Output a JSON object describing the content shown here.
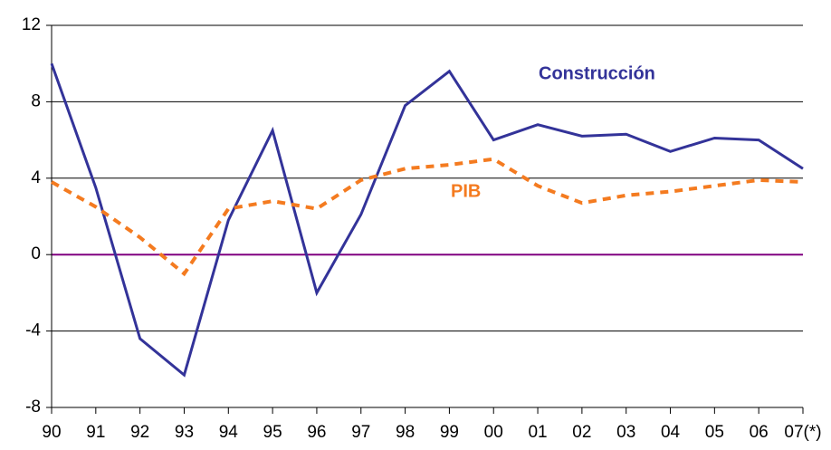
{
  "chart_data": {
    "type": "line",
    "categories": [
      "90",
      "91",
      "92",
      "93",
      "94",
      "95",
      "96",
      "97",
      "98",
      "99",
      "00",
      "01",
      "02",
      "03",
      "04",
      "05",
      "06",
      "07(*)"
    ],
    "series": [
      {
        "name": "Construcción",
        "color": "#333399",
        "dash": false,
        "values": [
          10,
          3.5,
          -4.4,
          -6.3,
          1.8,
          6.5,
          -2,
          2.1,
          7.8,
          9.6,
          6,
          6.8,
          6.2,
          6.3,
          5.4,
          6.1,
          6,
          4.5
        ]
      },
      {
        "name": "PIB",
        "color": "#f47b20",
        "dash": true,
        "values": [
          3.8,
          2.5,
          0.9,
          -1,
          2.4,
          2.8,
          2.4,
          3.9,
          4.5,
          4.7,
          5,
          3.6,
          2.7,
          3.1,
          3.3,
          3.6,
          3.9,
          3.8
        ]
      }
    ],
    "ylim": [
      -8,
      12
    ],
    "yticks": [
      -8,
      -4,
      0,
      4,
      8,
      12
    ],
    "grid": true,
    "zero_line_color": "#800080"
  }
}
